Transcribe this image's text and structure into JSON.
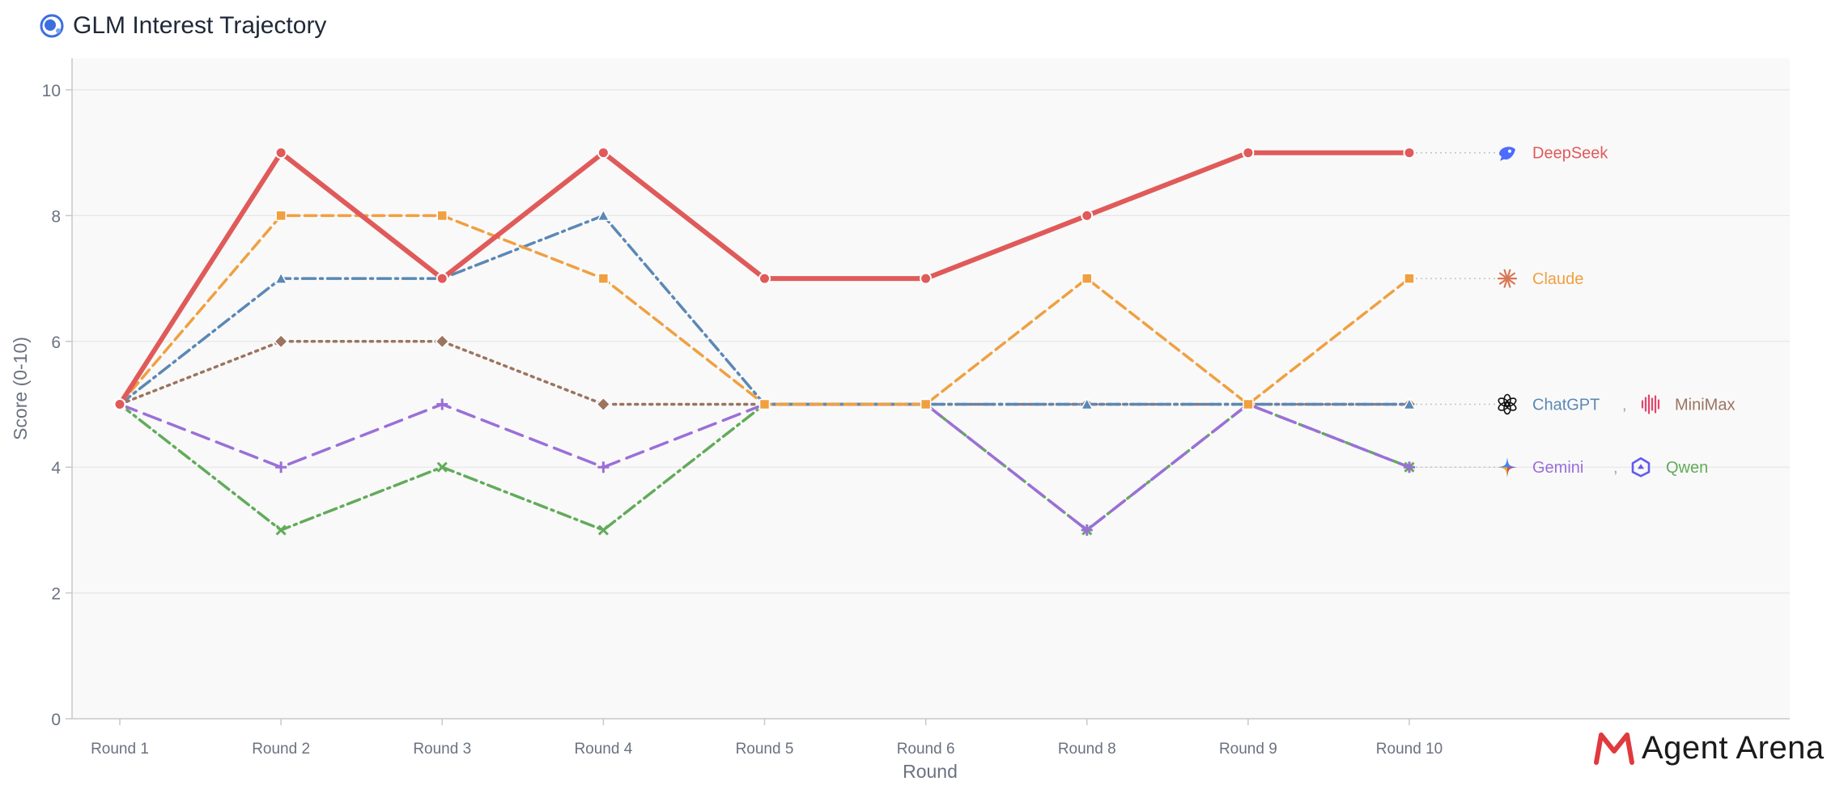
{
  "header": {
    "title": "GLM Interest Trajectory",
    "title_icon": "glm-globe-icon"
  },
  "branding": {
    "name": "Agent Arena",
    "logo": "agent-arena-m-logo",
    "logo_color": "#e0393e"
  },
  "chart_data": {
    "type": "line",
    "title": "GLM Interest Trajectory",
    "xlabel": "Round",
    "ylabel": "Score (0-10)",
    "ylim": [
      0,
      10
    ],
    "yticks": [
      0,
      2,
      4,
      6,
      8,
      10
    ],
    "grid": true,
    "background": "#f9f9f9",
    "categories": [
      "Round 1",
      "Round 2",
      "Round 3",
      "Round 4",
      "Round 5",
      "Round 6",
      "Round 8",
      "Round 9",
      "Round 10"
    ],
    "legend_placement": "right (end-of-line labels)",
    "series": [
      {
        "name": "DeepSeek",
        "color": "#e05a5a",
        "dash": "solid",
        "width": 6,
        "marker": "circle",
        "icon": "deepseek-whale-icon",
        "values": [
          5,
          9,
          7,
          9,
          7,
          7,
          8,
          9,
          9
        ]
      },
      {
        "name": "Claude",
        "color": "#f0a040",
        "dash": "dashed",
        "width": 3.5,
        "marker": "square",
        "icon": "claude-asterisk-icon",
        "values": [
          5,
          8,
          8,
          7,
          5,
          5,
          7,
          5,
          7
        ]
      },
      {
        "name": "ChatGPT",
        "color": "#5b88b4",
        "dash": "dashdot",
        "width": 3.5,
        "marker": "triangle",
        "icon": "chatgpt-knot-icon",
        "values": [
          5,
          7,
          7,
          8,
          5,
          5,
          5,
          5,
          5
        ]
      },
      {
        "name": "MiniMax",
        "color": "#9c7460",
        "dash": "dotted",
        "width": 3.5,
        "marker": "diamond",
        "icon": "minimax-wave-icon",
        "values": [
          5,
          6,
          6,
          5,
          5,
          5,
          5,
          5,
          5
        ]
      },
      {
        "name": "Gemini",
        "color": "#9b6fd8",
        "dash": "longdash",
        "width": 3.5,
        "marker": "plus",
        "icon": "gemini-sparkle-icon",
        "values": [
          5,
          4,
          5,
          4,
          5,
          5,
          3,
          5,
          4
        ]
      },
      {
        "name": "Qwen",
        "color": "#62ab5a",
        "dash": "dashdot",
        "width": 3.5,
        "marker": "x",
        "icon": "qwen-hex-icon",
        "values": [
          5,
          3,
          4,
          3,
          5,
          5,
          3,
          5,
          4
        ]
      }
    ],
    "end_labels": [
      {
        "value": 9,
        "names": [
          "DeepSeek"
        ]
      },
      {
        "value": 7,
        "names": [
          "Claude"
        ]
      },
      {
        "value": 5,
        "names": [
          "ChatGPT",
          "MiniMax"
        ]
      },
      {
        "value": 4,
        "names": [
          "Gemini",
          "Qwen"
        ]
      }
    ],
    "label_separator": ","
  }
}
